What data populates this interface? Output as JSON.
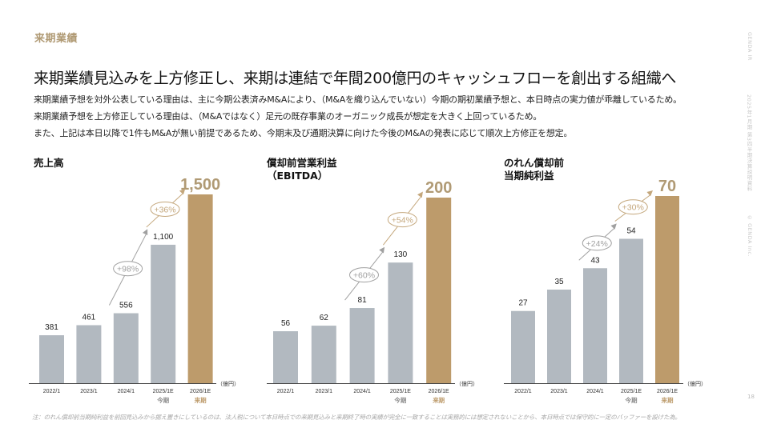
{
  "header": {
    "section_label": "来期業績",
    "headline": "来期業績見込みを上方修正し、来期は連結で年間200億円のキャッシュフローを創出する組織へ",
    "body_lines": [
      "来期業績予想を対外公表している理由は、主に今期公表済みM&Aにより、（M&Aを織り込んでいない）今期の期初業績予想と、本日時点の実力値が乖離しているため。",
      "来期業績予想を上方修正している理由は、（M&Aではなく）足元の既存事業のオーガニック成長が想定を大きく上回っているため。",
      "また、上記は本日以降で1件もM&Aが無い前提であるため、今期末及び通期決算に向けた今後のM&Aの発表に応じて順次上方修正を想定。"
    ]
  },
  "side": {
    "brand": "GENDA IR",
    "doc_title": "2025年1月期 第3四半期決算説明資料",
    "copyright": "© GENDA Inc."
  },
  "page_number": "18",
  "footnote": "注：のれん償却前当期純利益を前回見込みから据え置きにしているのは、法人税について本日時点での来期見込みと来期終了時の実績が完全に一致することは実務的には想定されないことから、本日時点では保守的に一定のバッファーを設けた為。",
  "colors": {
    "actual_bar": "#b2b9c0",
    "forecast_bar": "#bd9b6b",
    "accent_text": "#b09a74",
    "arrow_gray": "#a0a0a0",
    "arrow_gold": "#c4a77c",
    "axis": "#444444"
  },
  "chart_data": [
    {
      "type": "bar",
      "title_lines": [
        "売上高"
      ],
      "categories": [
        "2022/1",
        "2023/1",
        "2024/1",
        "2025/1E",
        "2026/1E"
      ],
      "values": [
        381,
        461,
        556,
        1100,
        1500
      ],
      "value_labels": [
        "381",
        "461",
        "556",
        "1,100",
        "1,500"
      ],
      "highlight_index": 4,
      "sublabels": [
        "",
        "",
        "",
        "今期",
        "来期"
      ],
      "unit": "（億円）",
      "growth": [
        {
          "label": "+98%",
          "from": 2,
          "to": 3,
          "style": "gray"
        },
        {
          "label": "+36%",
          "from": 3,
          "to": 4,
          "style": "gold"
        }
      ],
      "ylim": [
        0,
        1500
      ]
    },
    {
      "type": "bar",
      "title_lines": [
        "償却前営業利益",
        "（EBITDA）"
      ],
      "categories": [
        "2022/1",
        "2023/1",
        "2024/1",
        "2025/1E",
        "2026/1E"
      ],
      "values": [
        56,
        62,
        81,
        130,
        200
      ],
      "value_labels": [
        "56",
        "62",
        "81",
        "130",
        "200"
      ],
      "highlight_index": 4,
      "sublabels": [
        "",
        "",
        "",
        "今期",
        "来期"
      ],
      "unit": "（億円）",
      "growth": [
        {
          "label": "+60%",
          "from": 2,
          "to": 3,
          "style": "gray"
        },
        {
          "label": "+54%",
          "from": 3,
          "to": 4,
          "style": "gold"
        }
      ],
      "ylim": [
        0,
        200
      ]
    },
    {
      "type": "bar",
      "title_lines": [
        "のれん償却前",
        "当期純利益"
      ],
      "categories": [
        "2022/1",
        "2023/1",
        "2024/1",
        "2025/1E",
        "2026/1E"
      ],
      "values": [
        27,
        35,
        43,
        54,
        70
      ],
      "value_labels": [
        "27",
        "35",
        "43",
        "54",
        "70"
      ],
      "highlight_index": 4,
      "sublabels": [
        "",
        "",
        "",
        "今期",
        "来期"
      ],
      "unit": "（億円）",
      "growth": [
        {
          "label": "+24%",
          "from": 2,
          "to": 3,
          "style": "gray"
        },
        {
          "label": "+30%",
          "from": 3,
          "to": 4,
          "style": "gold"
        }
      ],
      "ylim": [
        0,
        70
      ]
    }
  ]
}
